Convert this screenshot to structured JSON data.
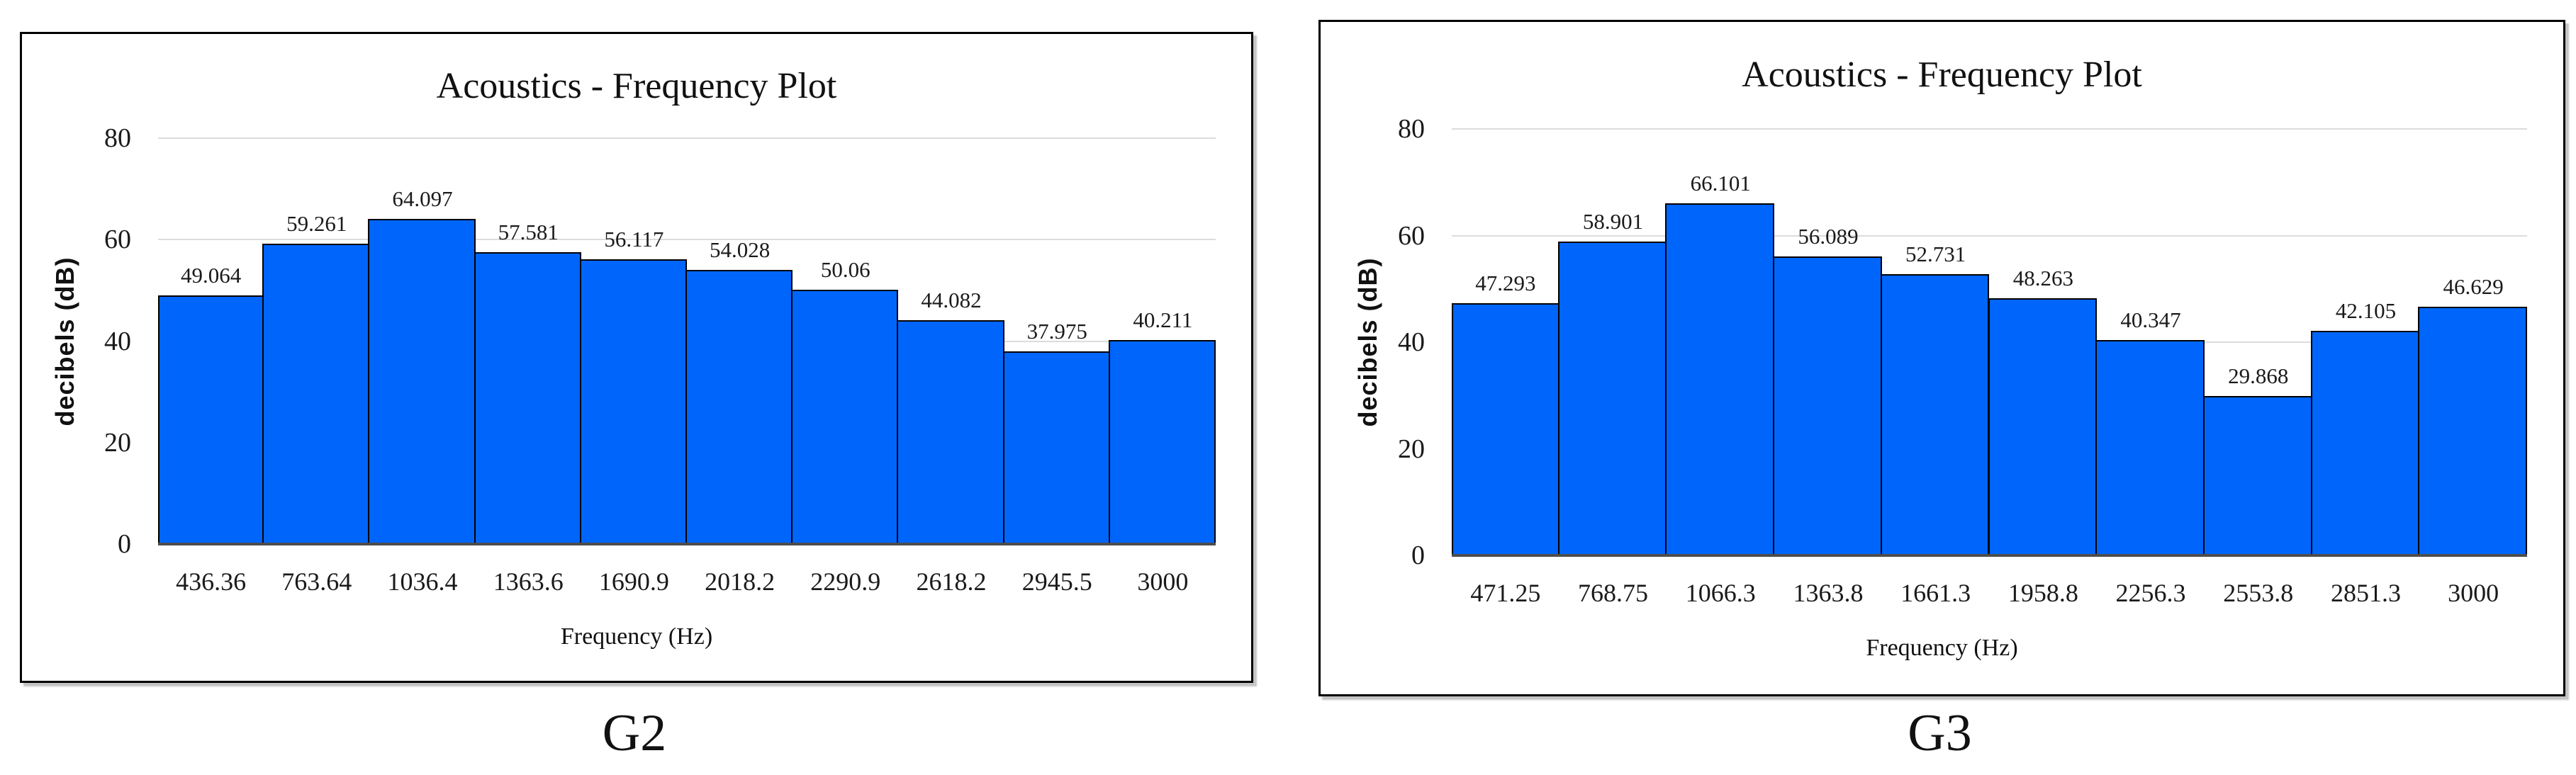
{
  "figure": {
    "background": "#FFFFFF",
    "style": {
      "bar_fill": "#0066FB",
      "bar_border": "#000000",
      "gridline": "#DCDCDC",
      "axis_line": "#4D4D4D",
      "text": "#000000"
    }
  },
  "chart_data": [
    {
      "type": "bar",
      "panel": "G2",
      "caption": "G2",
      "title": "Acoustics - Frequency Plot",
      "xlabel": "Frequency (Hz)",
      "ylabel": "decibels  (dB)",
      "ylim": [
        0,
        80
      ],
      "y_ticks": [
        0,
        20,
        40,
        60,
        80
      ],
      "grid": "horizontal",
      "legend": "none",
      "categories": [
        "436.36",
        "763.64",
        "1036.4",
        "1363.6",
        "1690.9",
        "2018.2",
        "2290.9",
        "2618.2",
        "2945.5",
        "3000"
      ],
      "values": [
        49.064,
        59.261,
        64.097,
        57.581,
        56.117,
        54.028,
        50.06,
        44.082,
        37.975,
        40.211
      ],
      "data_labels": [
        "49.064",
        "59.261",
        "64.097",
        "57.581",
        "56.117",
        "54.028",
        "50.06",
        "44.082",
        "37.975",
        "40.211"
      ]
    },
    {
      "type": "bar",
      "panel": "G3",
      "caption": "G3",
      "title": "Acoustics - Frequency Plot",
      "xlabel": "Frequency (Hz)",
      "ylabel": "decibels  (dB)",
      "ylim": [
        0,
        80
      ],
      "y_ticks": [
        0,
        20,
        40,
        60,
        80
      ],
      "grid": "horizontal",
      "legend": "none",
      "categories": [
        "471.25",
        "768.75",
        "1066.3",
        "1363.8",
        "1661.3",
        "1958.8",
        "2256.3",
        "2553.8",
        "2851.3",
        "3000"
      ],
      "values": [
        47.293,
        58.901,
        66.101,
        56.089,
        52.731,
        48.263,
        40.347,
        29.868,
        42.105,
        46.629
      ],
      "data_labels": [
        "47.293",
        "58.901",
        "66.101",
        "56.089",
        "52.731",
        "48.263",
        "40.347",
        "29.868",
        "42.105",
        "46.629"
      ]
    }
  ]
}
